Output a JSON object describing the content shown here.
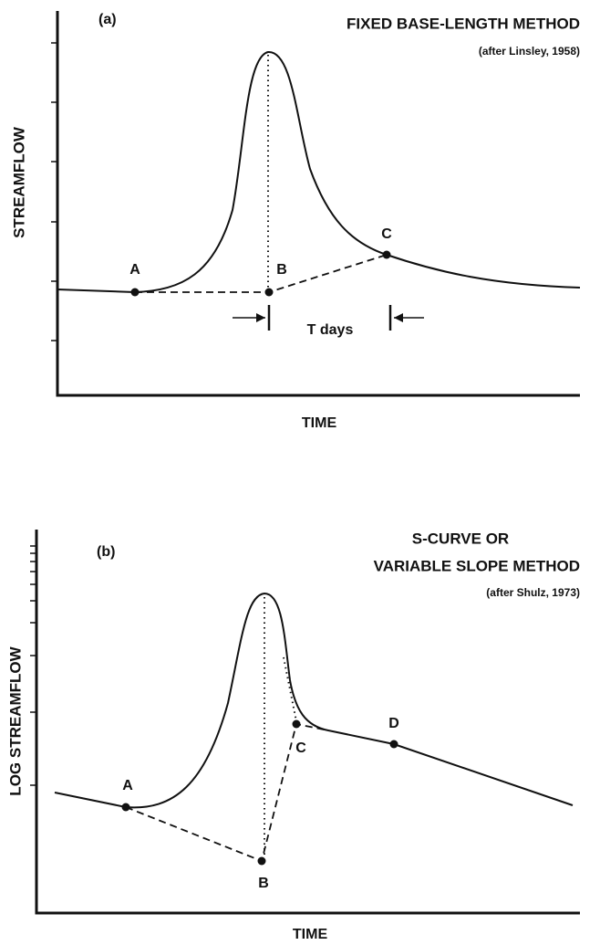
{
  "panels": [
    {
      "label": "(a)",
      "title": [
        "FIXED BASE-LENGTH METHOD"
      ],
      "citation": "(after Linsley, 1958)",
      "y_axis_label": "STREAMFLOW",
      "x_axis_label": "TIME",
      "points": [
        "A",
        "B",
        "C"
      ],
      "interval_label": "T days"
    },
    {
      "label": "(b)",
      "title": [
        "S-CURVE OR",
        "VARIABLE SLOPE METHOD"
      ],
      "citation": "(after Shulz, 1973)",
      "y_axis_label": "LOG STREAMFLOW",
      "x_axis_label": "TIME",
      "points": [
        "A",
        "B",
        "C",
        "D"
      ]
    }
  ]
}
